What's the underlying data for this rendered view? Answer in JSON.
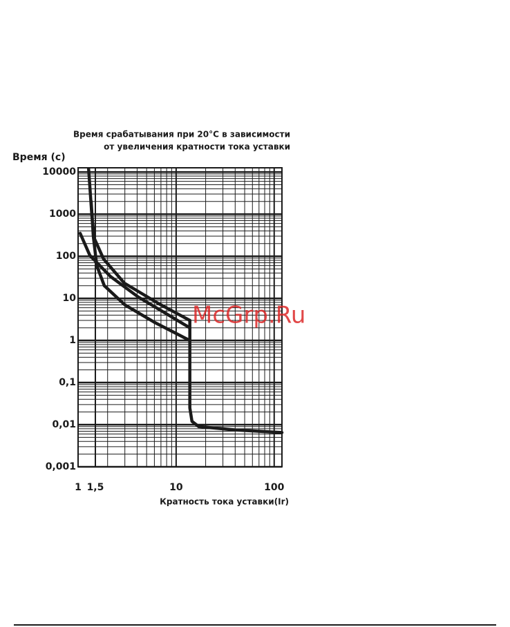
{
  "chart_data": {
    "type": "line",
    "title": [
      "Время срабатывания при 20°C в зависимости",
      "от увеличения кратности тока уставки"
    ],
    "y_label": "Время (с)",
    "x_label": "Кратность тока уставки(Ir)",
    "log_x": true,
    "log_y": true,
    "grid": true,
    "xlim": [
      1,
      120
    ],
    "ylim": [
      0.001,
      12600
    ],
    "xticks": [
      1,
      {
        "value": 1.5,
        "label": "1,5"
      },
      10,
      100
    ],
    "yticks": [
      {
        "value": 0.001,
        "label": "0,001"
      },
      {
        "value": 0.01,
        "label": "0,01"
      },
      {
        "value": 0.1,
        "label": "0,1"
      },
      1,
      10,
      100,
      1000,
      10000
    ],
    "series": [
      {
        "color": "#1a1a1a",
        "x": [
          1.28,
          1.38,
          1.46,
          1.82,
          2.96,
          6.7,
          13.8
        ],
        "values": [
          12000,
          1000,
          270,
          86,
          23,
          7.4,
          3
        ]
      },
      {
        "color": "#1a1a1a",
        "x": [
          1.05,
          1.32,
          2.14,
          4.1,
          13.8
        ],
        "values": [
          350,
          104,
          33,
          10.8,
          2
        ]
      },
      {
        "color": "#1a1a1a",
        "x": [
          1.36,
          1.43,
          1.55,
          1.85,
          3,
          6,
          13.8
        ],
        "values": [
          2000,
          300,
          60,
          20,
          7,
          2.7,
          1
        ]
      },
      {
        "color": "#1a1a1a",
        "x": [
          13.8,
          13.8,
          14.5,
          17,
          40,
          120
        ],
        "values": [
          3,
          0.025,
          0.012,
          0.009,
          0.0075,
          0.0065
        ]
      }
    ],
    "watermark": "McGrp.Ru"
  }
}
